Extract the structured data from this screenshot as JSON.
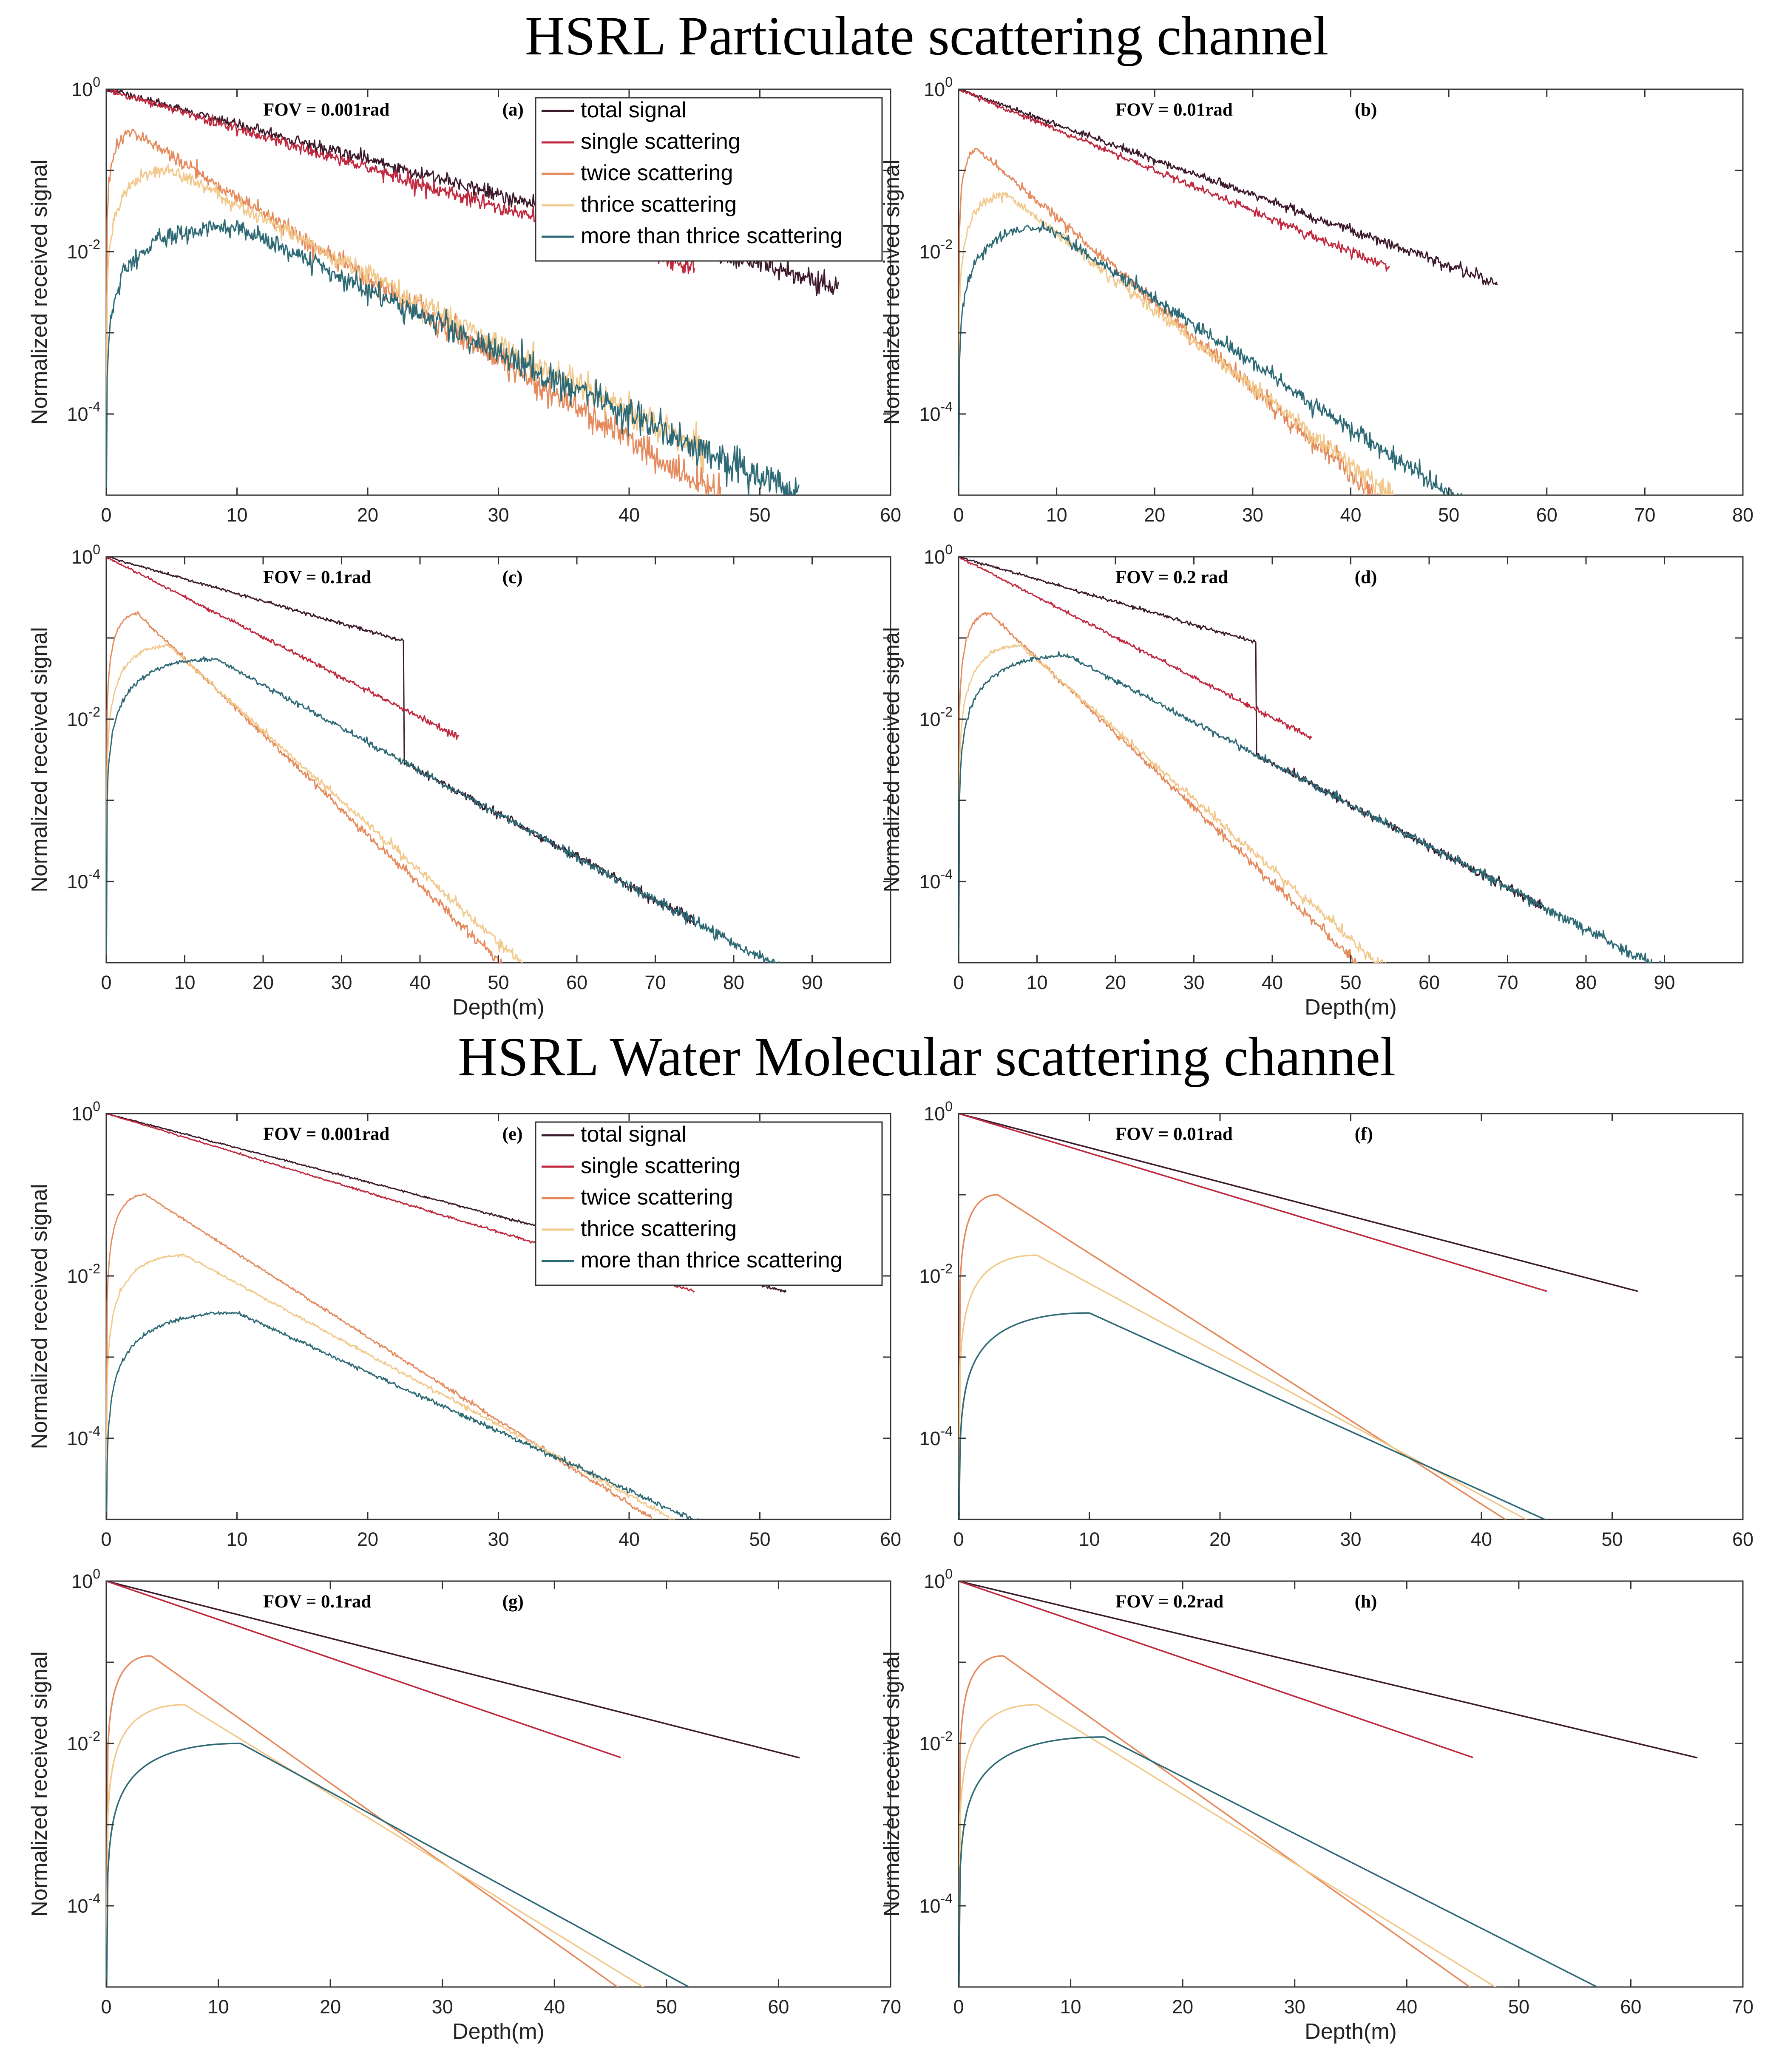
{
  "figure": {
    "titles": [
      "HSRL Particulate scattering channel",
      "HSRL Water Molecular scattering channel"
    ]
  },
  "legend": {
    "entries": [
      {
        "key": "total",
        "name": "total signal",
        "color": "#3c1a2c"
      },
      {
        "key": "single",
        "name": "single scattering",
        "color": "#c0283e"
      },
      {
        "key": "twice",
        "name": "twice scattering",
        "color": "#e58a5c"
      },
      {
        "key": "thrice",
        "name": "thrice scattering",
        "color": "#f2c98c"
      },
      {
        "key": "more",
        "name": "more than thrice scattering",
        "color": "#2e6a75"
      }
    ]
  },
  "chart_data": [
    {
      "id": "a",
      "panel_label": "(a)",
      "fov": "FOV = 0.001rad",
      "channel": "HSRL Particulate scattering channel",
      "type": "line",
      "yscale": "log",
      "xlim": [
        0,
        60
      ],
      "xticks": [
        0,
        10,
        20,
        30,
        40,
        50,
        60
      ],
      "ylim": [
        1e-05,
        1
      ],
      "yticks": [
        "10^0",
        "10^-2",
        "10^-4"
      ],
      "xlabel": "",
      "ylabel": "Normalized received signal",
      "legend": true,
      "noise": 1.0,
      "series": [
        {
          "key": "total",
          "peak_depth": 0,
          "peak_level": 1.0,
          "decay_per_m": 0.1,
          "end_depth": 56
        },
        {
          "key": "single",
          "peak_depth": 0,
          "peak_level": 1.0,
          "decay_per_m": 0.112,
          "end_depth": 45
        },
        {
          "key": "twice",
          "peak_depth": 2,
          "peak_level": 0.3,
          "decay_per_m": 0.1,
          "end_depth": 47
        },
        {
          "key": "thrice",
          "peak_depth": 5,
          "peak_level": 0.1,
          "decay_per_m": 0.085,
          "end_depth": 46
        },
        {
          "key": "more",
          "peak_depth": 10,
          "peak_level": 0.02,
          "decay_per_m": 0.077,
          "end_depth": 53
        }
      ]
    },
    {
      "id": "b",
      "panel_label": "(b)",
      "fov": "FOV = 0.01rad",
      "channel": "HSRL Particulate scattering channel",
      "type": "line",
      "yscale": "log",
      "xlim": [
        0,
        80
      ],
      "xticks": [
        0,
        10,
        20,
        30,
        40,
        50,
        60,
        70,
        80
      ],
      "ylim": [
        1e-05,
        1
      ],
      "yticks": [
        "10^0",
        "10^-2",
        "10^-4"
      ],
      "xlabel": "",
      "ylabel": "Normalized received signal",
      "legend": false,
      "noise": 0.55,
      "series": [
        {
          "key": "total",
          "peak_depth": 0,
          "peak_level": 1.0,
          "decay_per_m": 0.1,
          "end_depth": 55
        },
        {
          "key": "single",
          "peak_depth": 0,
          "peak_level": 1.0,
          "decay_per_m": 0.115,
          "end_depth": 44
        },
        {
          "key": "twice",
          "peak_depth": 2,
          "peak_level": 0.18,
          "decay_per_m": 0.105,
          "end_depth": 47
        },
        {
          "key": "thrice",
          "peak_depth": 5,
          "peak_level": 0.05,
          "decay_per_m": 0.095,
          "end_depth": 50
        },
        {
          "key": "more",
          "peak_depth": 9,
          "peak_level": 0.02,
          "decay_per_m": 0.08,
          "end_depth": 72
        }
      ]
    },
    {
      "id": "c",
      "panel_label": "(c)",
      "fov": "FOV = 0.1rad",
      "channel": "HSRL Particulate scattering channel",
      "type": "line",
      "yscale": "log",
      "xlim": [
        0,
        100
      ],
      "xticks": [
        0,
        10,
        20,
        30,
        40,
        50,
        60,
        70,
        80,
        90
      ],
      "ylim": [
        1e-05,
        1
      ],
      "yticks": [
        "10^0",
        "10^-2",
        "10^-4"
      ],
      "xlabel": "Depth(m)",
      "ylabel": "Normalized received signal",
      "legend": false,
      "noise": 0.3,
      "series": [
        {
          "key": "total",
          "peak_depth": 0,
          "peak_level": 1.0,
          "decay_per_m": 0.063,
          "end_depth": 75,
          "merge_into": "more",
          "merge_from": 38
        },
        {
          "key": "single",
          "peak_depth": 0,
          "peak_level": 1.0,
          "decay_per_m": 0.114,
          "end_depth": 45
        },
        {
          "key": "twice",
          "peak_depth": 4,
          "peak_level": 0.2,
          "decay_per_m": 0.093,
          "end_depth": 52
        },
        {
          "key": "thrice",
          "peak_depth": 8,
          "peak_level": 0.08,
          "decay_per_m": 0.087,
          "end_depth": 62
        },
        {
          "key": "more",
          "peak_depth": 14,
          "peak_level": 0.055,
          "decay_per_m": 0.053,
          "end_depth": 98
        }
      ]
    },
    {
      "id": "d",
      "panel_label": "(d)",
      "fov": "FOV = 0.2 rad",
      "channel": "HSRL Particulate scattering channel",
      "type": "line",
      "yscale": "log",
      "xlim": [
        0,
        100
      ],
      "xticks": [
        0,
        10,
        20,
        30,
        40,
        50,
        60,
        70,
        80,
        90
      ],
      "ylim": [
        1e-05,
        1
      ],
      "yticks": [
        "10^0",
        "10^-2",
        "10^-4"
      ],
      "xlabel": "Depth(m)",
      "ylabel": "Normalized received signal",
      "legend": false,
      "noise": 0.3,
      "series": [
        {
          "key": "total",
          "peak_depth": 0,
          "peak_level": 1.0,
          "decay_per_m": 0.064,
          "end_depth": 75,
          "merge_into": "more",
          "merge_from": 38
        },
        {
          "key": "single",
          "peak_depth": 0,
          "peak_level": 1.0,
          "decay_per_m": 0.114,
          "end_depth": 45
        },
        {
          "key": "twice",
          "peak_depth": 4,
          "peak_level": 0.2,
          "decay_per_m": 0.092,
          "end_depth": 51
        },
        {
          "key": "thrice",
          "peak_depth": 8,
          "peak_level": 0.08,
          "decay_per_m": 0.086,
          "end_depth": 58
        },
        {
          "key": "more",
          "peak_depth": 14,
          "peak_level": 0.06,
          "decay_per_m": 0.051,
          "end_depth": 100
        }
      ]
    },
    {
      "id": "e",
      "panel_label": "(e)",
      "fov": "FOV = 0.001rad",
      "channel": "HSRL Water Molecular scattering channel",
      "type": "line",
      "yscale": "log",
      "xlim": [
        0,
        60
      ],
      "xticks": [
        0,
        10,
        20,
        30,
        40,
        50,
        60
      ],
      "ylim": [
        1e-05,
        1
      ],
      "yticks": [
        "10^0",
        "10^-2",
        "10^-4"
      ],
      "xlabel": "",
      "ylabel": "Normalized received signal",
      "legend": true,
      "noise": 0.15,
      "series": [
        {
          "key": "total",
          "peak_depth": 0,
          "peak_level": 1.0,
          "decay_per_m": 0.097,
          "end_depth": 52
        },
        {
          "key": "single",
          "peak_depth": 0,
          "peak_level": 1.0,
          "decay_per_m": 0.112,
          "end_depth": 45
        },
        {
          "key": "twice",
          "peak_depth": 3,
          "peak_level": 0.1,
          "decay_per_m": 0.103,
          "end_depth": 47
        },
        {
          "key": "thrice",
          "peak_depth": 6,
          "peak_level": 0.018,
          "decay_per_m": 0.087,
          "end_depth": 47
        },
        {
          "key": "more",
          "peak_depth": 10,
          "peak_level": 0.0035,
          "decay_per_m": 0.073,
          "end_depth": 47
        }
      ]
    },
    {
      "id": "f",
      "panel_label": "(f)",
      "fov": "FOV = 0.01rad",
      "channel": "HSRL Water Molecular scattering channel",
      "type": "line",
      "yscale": "log",
      "xlim": [
        0,
        60
      ],
      "xticks": [
        0,
        10,
        20,
        30,
        40,
        50,
        60
      ],
      "ylim": [
        1e-05,
        1
      ],
      "yticks": [
        "10^0",
        "10^-2",
        "10^-4"
      ],
      "xlabel": "",
      "ylabel": "",
      "legend": false,
      "noise": 0,
      "series": [
        {
          "key": "total",
          "peak_depth": 0,
          "peak_level": 1.0,
          "decay_per_m": 0.097,
          "end_depth": 52
        },
        {
          "key": "single",
          "peak_depth": 0,
          "peak_level": 1.0,
          "decay_per_m": 0.112,
          "end_depth": 45
        },
        {
          "key": "twice",
          "peak_depth": 3,
          "peak_level": 0.1,
          "decay_per_m": 0.103,
          "end_depth": 47
        },
        {
          "key": "thrice",
          "peak_depth": 6,
          "peak_level": 0.018,
          "decay_per_m": 0.087,
          "end_depth": 47
        },
        {
          "key": "more",
          "peak_depth": 10,
          "peak_level": 0.0035,
          "decay_per_m": 0.073,
          "end_depth": 48
        }
      ]
    },
    {
      "id": "g",
      "panel_label": "(g)",
      "fov": "FOV = 0.1rad",
      "channel": "HSRL Water Molecular scattering channel",
      "type": "line",
      "yscale": "log",
      "xlim": [
        0,
        70
      ],
      "xticks": [
        0,
        10,
        20,
        30,
        40,
        50,
        60,
        70
      ],
      "ylim": [
        1e-05,
        1
      ],
      "yticks": [
        "10^0",
        "10^-2",
        "10^-4"
      ],
      "xlabel": "Depth(m)",
      "ylabel": "Normalized received signal",
      "legend": false,
      "noise": 0,
      "series": [
        {
          "key": "total",
          "peak_depth": 0,
          "peak_level": 1.0,
          "decay_per_m": 0.081,
          "end_depth": 62
        },
        {
          "key": "single",
          "peak_depth": 0,
          "peak_level": 1.0,
          "decay_per_m": 0.109,
          "end_depth": 46
        },
        {
          "key": "twice",
          "peak_depth": 4,
          "peak_level": 0.12,
          "decay_per_m": 0.098,
          "end_depth": 50
        },
        {
          "key": "thrice",
          "peak_depth": 7,
          "peak_level": 0.03,
          "decay_per_m": 0.085,
          "end_depth": 53
        },
        {
          "key": "more",
          "peak_depth": 12,
          "peak_level": 0.01,
          "decay_per_m": 0.075,
          "end_depth": 61
        }
      ]
    },
    {
      "id": "h",
      "panel_label": "(h)",
      "fov": "FOV = 0.2rad",
      "channel": "HSRL Water Molecular scattering channel",
      "type": "line",
      "yscale": "log",
      "xlim": [
        0,
        70
      ],
      "xticks": [
        0,
        10,
        20,
        30,
        40,
        50,
        60,
        70
      ],
      "ylim": [
        1e-05,
        1
      ],
      "yticks": [
        "10^0",
        "10^-2",
        "10^-4"
      ],
      "xlabel": "Depth(m)",
      "ylabel": "Normalized received signal",
      "legend": false,
      "noise": 0,
      "series": [
        {
          "key": "total",
          "peak_depth": 0,
          "peak_level": 1.0,
          "decay_per_m": 0.076,
          "end_depth": 66
        },
        {
          "key": "single",
          "peak_depth": 0,
          "peak_level": 1.0,
          "decay_per_m": 0.109,
          "end_depth": 46
        },
        {
          "key": "twice",
          "peak_depth": 4,
          "peak_level": 0.12,
          "decay_per_m": 0.098,
          "end_depth": 50
        },
        {
          "key": "thrice",
          "peak_depth": 7,
          "peak_level": 0.03,
          "decay_per_m": 0.085,
          "end_depth": 53
        },
        {
          "key": "more",
          "peak_depth": 13,
          "peak_level": 0.012,
          "decay_per_m": 0.07,
          "end_depth": 66
        }
      ]
    }
  ]
}
